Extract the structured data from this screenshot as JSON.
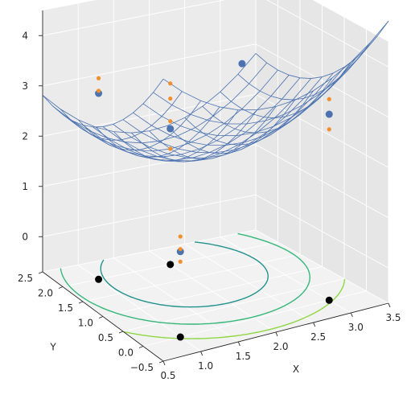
{
  "chart_data": {
    "type": "surface3d",
    "title": "",
    "xlabel": "X",
    "ylabel": "Y",
    "zlabel": "",
    "xlim": [
      0.5,
      3.5
    ],
    "ylim": [
      -0.5,
      2.5
    ],
    "zlim": [
      -0.7,
      4.5
    ],
    "x_ticks": [
      "0.5",
      "1.0",
      "1.5",
      "2.0",
      "2.5",
      "3.0",
      "3.5"
    ],
    "y_ticks": [
      "−0.5",
      "0.0",
      "0.5",
      "1.0",
      "1.5",
      "2.0",
      "2.5"
    ],
    "z_ticks": [
      "0",
      "1",
      "2",
      "3",
      "4"
    ],
    "grid": true,
    "surface": {
      "x_range": [
        0.5,
        3.5
      ],
      "y_range": [
        -0.5,
        2.5
      ],
      "steps": 12,
      "color": "#4c72b0"
    },
    "control_points": {
      "color": "#4c72b0",
      "points": [
        {
          "x": 1,
          "y": 0,
          "z": 1
        },
        {
          "x": 1,
          "y": 2,
          "z": 3
        },
        {
          "x": 3,
          "y": 0,
          "z": 3
        },
        {
          "x": 3,
          "y": 2,
          "z": 3
        },
        {
          "x": 2,
          "y": 2,
          "z": 2
        }
      ]
    },
    "floor_points": {
      "color": "#000000",
      "points": [
        {
          "x": 1,
          "y": 0
        },
        {
          "x": 1,
          "y": 2
        },
        {
          "x": 3,
          "y": 0
        },
        {
          "x": 2,
          "y": 2
        }
      ]
    },
    "small_points": {
      "color": "#f28e2b",
      "points": [
        {
          "x": 1,
          "y": 0,
          "z": 1.3
        },
        {
          "x": 1,
          "y": 0,
          "z": 1.05
        },
        {
          "x": 1,
          "y": 0,
          "z": 0.8
        },
        {
          "x": 1,
          "y": 2,
          "z": 3.3
        },
        {
          "x": 1,
          "y": 2,
          "z": 3.05
        },
        {
          "x": 3,
          "y": 0,
          "z": 3.3
        },
        {
          "x": 3,
          "y": 0,
          "z": 2.7
        },
        {
          "x": 2,
          "y": 2,
          "z": 2.9
        },
        {
          "x": 2,
          "y": 2,
          "z": 2.6
        },
        {
          "x": 2,
          "y": 2,
          "z": 2.15
        },
        {
          "x": 2,
          "y": 2,
          "z": 1.6
        }
      ]
    },
    "contours": {
      "levels": [
        0.3,
        0.8,
        1.5,
        2.3,
        3.2
      ],
      "colors": [
        "#472d7b",
        "#31688e",
        "#21918c",
        "#35b779",
        "#8fd744"
      ]
    }
  }
}
